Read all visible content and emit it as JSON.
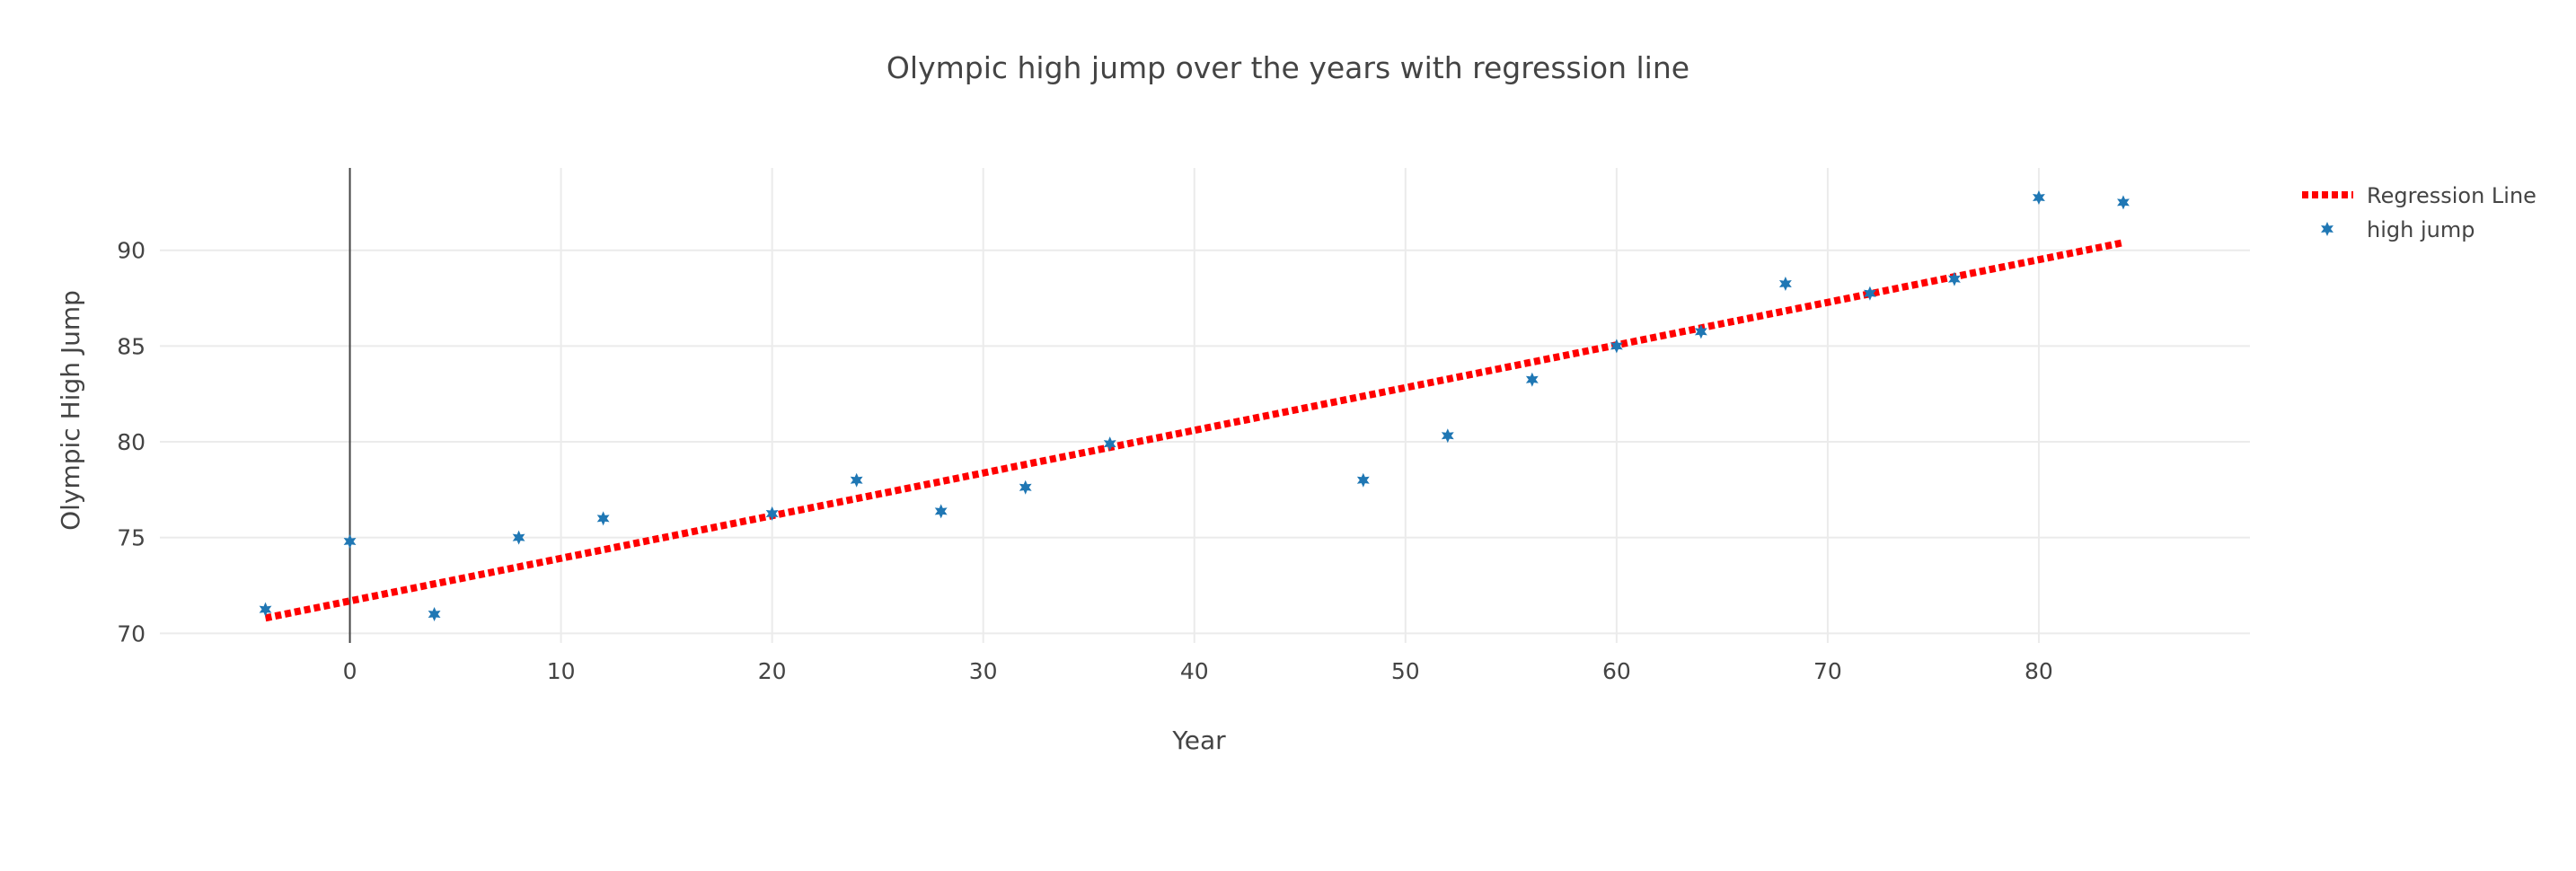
{
  "chart_data": {
    "type": "scatter",
    "title": "Olympic high jump over the years with regression line",
    "xlabel": "Year",
    "ylabel": "Olympic High Jump",
    "xlim": [
      -9,
      90
    ],
    "ylim": [
      69.5,
      94.3
    ],
    "x_ticks": [
      0,
      10,
      20,
      30,
      40,
      50,
      60,
      70,
      80
    ],
    "y_ticks": [
      70,
      75,
      80,
      85,
      90
    ],
    "grid": true,
    "zero_line": "x = 0",
    "legend_position": "top-right",
    "series": [
      {
        "name": "Regression Line",
        "type": "line",
        "style": "dotted",
        "color": "#ff0000",
        "x": [
          -4,
          84
        ],
        "y": [
          70.8,
          90.4
        ]
      },
      {
        "name": "high jump",
        "type": "scatter",
        "marker": "star",
        "color": "#1f77b4",
        "x": [
          -4,
          0,
          4,
          8,
          12,
          20,
          24,
          28,
          32,
          36,
          48,
          52,
          56,
          60,
          64,
          68,
          72,
          76,
          80,
          84
        ],
        "y": [
          71.25,
          74.8,
          71.0,
          75.0,
          76.0,
          76.25,
          78.0,
          76.375,
          77.625,
          79.9,
          78.0,
          80.32,
          83.25,
          85.0,
          85.75,
          88.25,
          87.75,
          88.5,
          92.75,
          92.5
        ]
      }
    ]
  }
}
